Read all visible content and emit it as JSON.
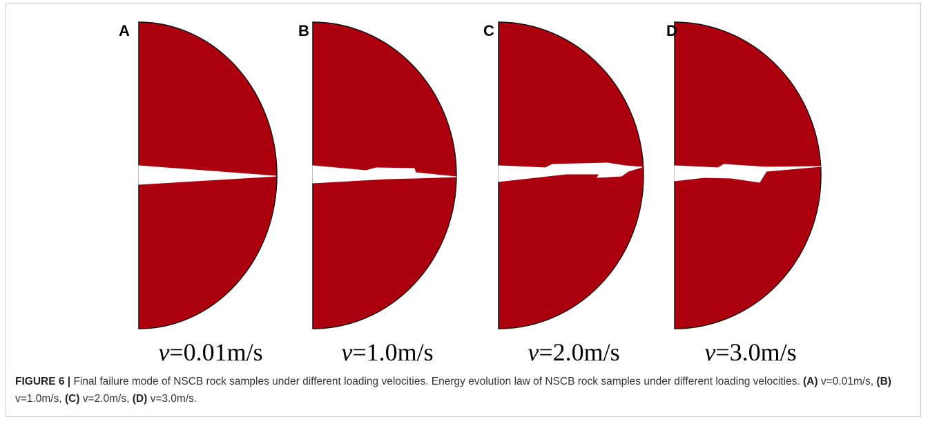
{
  "figure": {
    "panels": [
      {
        "label": "A",
        "symbol": "v",
        "value": "=0.01m/s"
      },
      {
        "label": "B",
        "symbol": "v",
        "value": "=1.0m/s"
      },
      {
        "label": "C",
        "symbol": "v",
        "value": "=2.0m/s"
      },
      {
        "label": "D",
        "symbol": "v",
        "value": "=3.0m/s"
      }
    ],
    "caption": {
      "label": "FIGURE 6 |",
      "text": "Final failure mode of NSCB rock samples under different loading velocities. Energy evolution law of NSCB rock samples under different loading velocities.",
      "items": [
        {
          "label": "(A)",
          "text": "v=0.01m/s,"
        },
        {
          "label": "(B)",
          "text": "v=1.0m/s,"
        },
        {
          "label": "(C)",
          "text": "v=2.0m/s,"
        },
        {
          "label": "(D)",
          "text": "v=3.0m/s."
        }
      ]
    }
  }
}
